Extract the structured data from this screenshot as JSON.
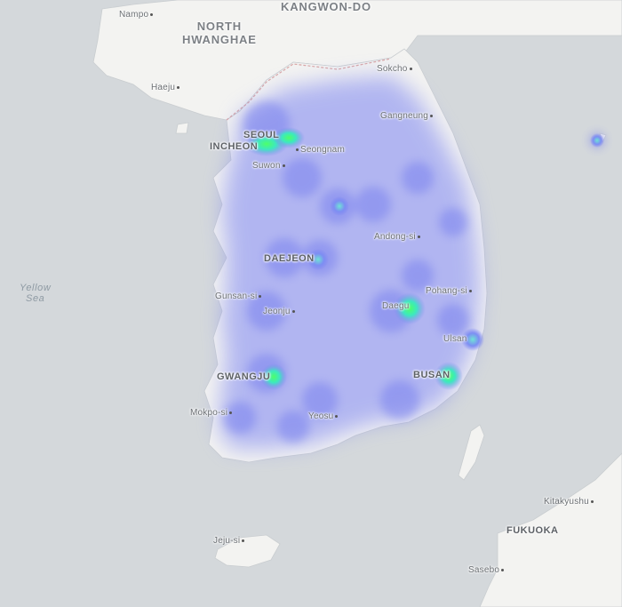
{
  "map": {
    "regions": {
      "north_hwanghae": "NORTH\nHWANGHAE",
      "kangwon_do": "KANGWON-DO"
    },
    "water": {
      "yellow_sea": "Yellow\nSea"
    },
    "cities": {
      "nampo": "Nampo",
      "haeju": "Haeju",
      "sokcho": "Sokcho",
      "gangneung": "Gangneung",
      "seoul": "SEOUL",
      "incheon": "INCHEON",
      "seongnam": "Seongnam",
      "suwon": "Suwon",
      "andong": "Andong-si",
      "daejeon": "DAEJEON",
      "gunsan": "Gunsan-si",
      "jeonju": "Jeonju",
      "pohang": "Pohang-si",
      "daegu": "Daegu",
      "ulsan": "Ulsan",
      "busan": "BUSAN",
      "gwangju": "GWANGJU",
      "mokpo": "Mokpo-si",
      "yeosu": "Yeosu",
      "jeju": "Jeju-si",
      "kitakyushu": "Kitakyushu",
      "fukuoka": "FUKUOKA",
      "sasebo": "Sasebo"
    },
    "colors": {
      "water": "#d4d8db",
      "land": "#f2f2f0",
      "heat_low": "#8a90f0",
      "heat_high": "#39ff7a"
    }
  }
}
